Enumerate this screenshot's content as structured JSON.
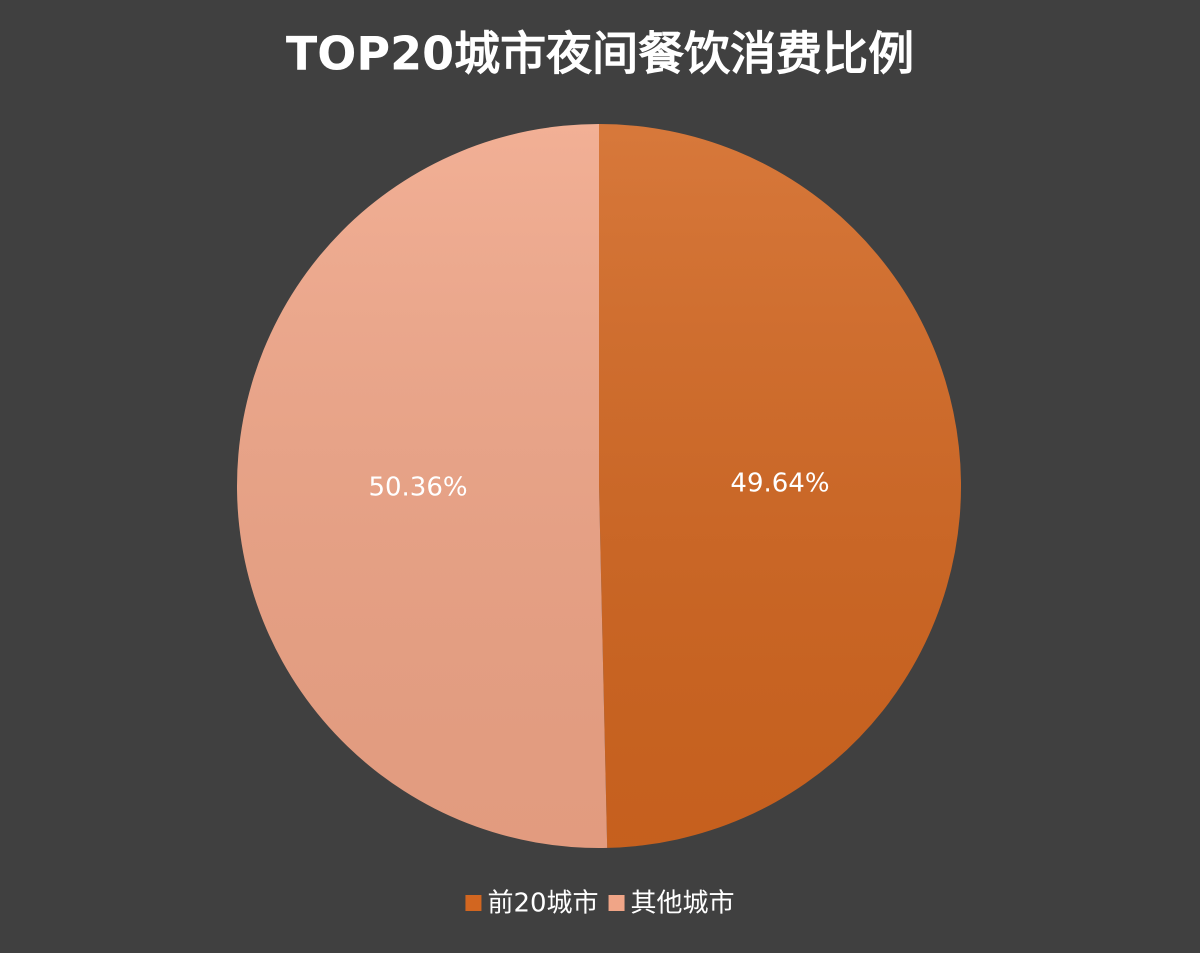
{
  "chart_data": {
    "type": "pie",
    "title": "TOP20城市夜间餐饮消费比例",
    "categories": [
      "前20城市",
      "其他城市"
    ],
    "values": [
      49.64,
      50.36
    ],
    "value_labels": [
      "49.64%",
      "50.36%"
    ],
    "colors": [
      "#d26620",
      "#f0a587"
    ],
    "legend": "bottom"
  }
}
